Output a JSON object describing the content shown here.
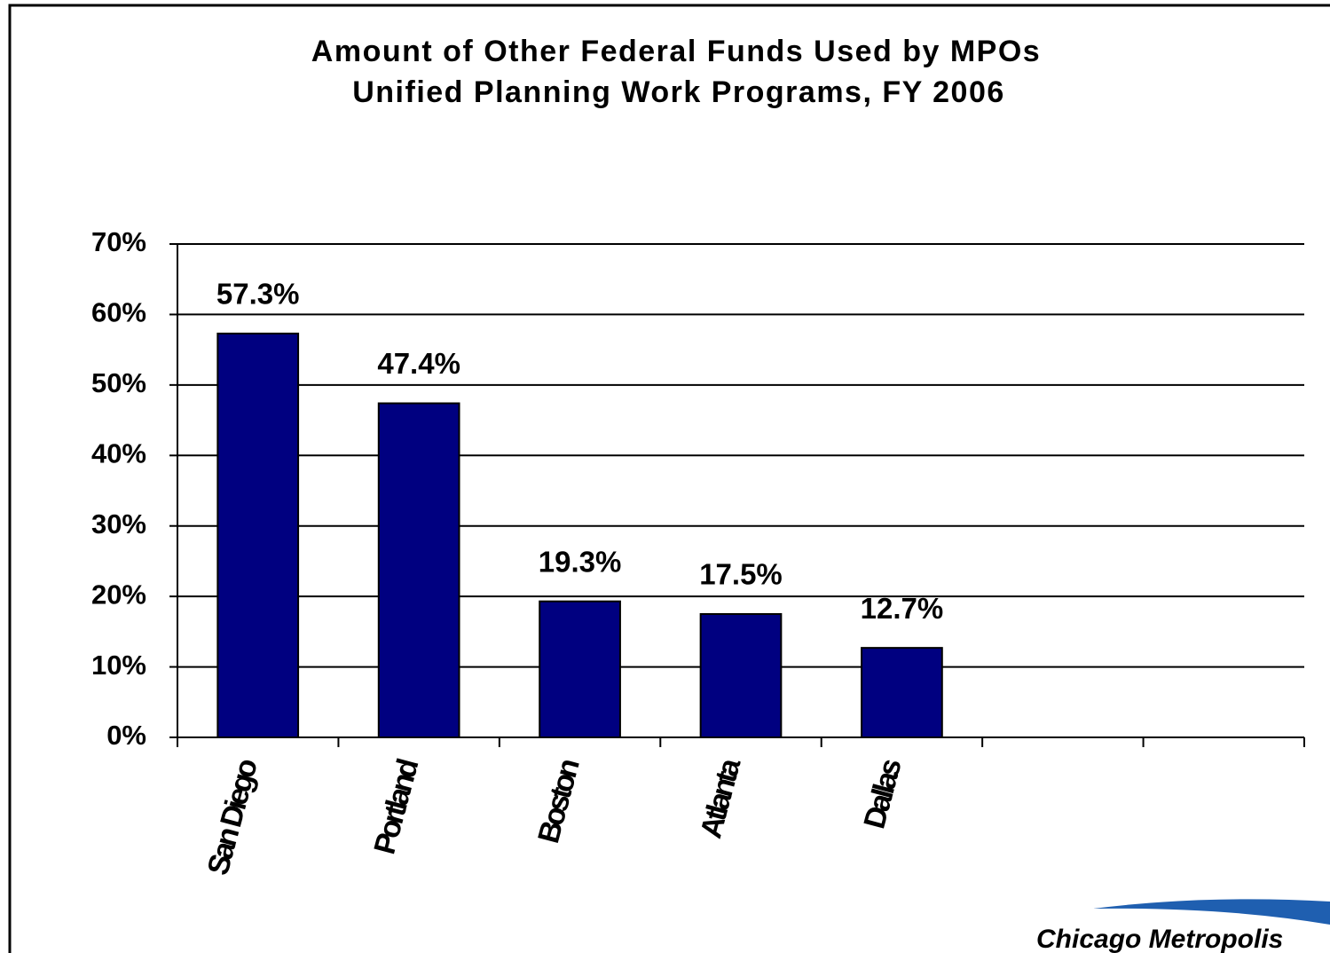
{
  "chart_data": {
    "type": "bar",
    "title": [
      "Amount of Other Federal Funds Used by MPOs",
      "Unified Planning Work Programs, FY 2006"
    ],
    "categories": [
      "San Diego",
      "Portland",
      "Boston",
      "Atlanta",
      "Dallas",
      null,
      null
    ],
    "values": [
      57.3,
      47.4,
      19.3,
      17.5,
      12.7,
      null,
      null
    ],
    "value_labels": [
      "57.3%",
      "47.4%",
      "19.3%",
      "17.5%",
      "12.7%",
      null,
      null
    ],
    "color": "#000080",
    "ylim": [
      0,
      70
    ],
    "yticks": [
      {
        "value": 0,
        "label": "0%"
      },
      {
        "value": 10,
        "label": "10%"
      },
      {
        "value": 20,
        "label": "20%"
      },
      {
        "value": 30,
        "label": "30%"
      },
      {
        "value": 40,
        "label": "40%"
      },
      {
        "value": 50,
        "label": "50%"
      },
      {
        "value": 60,
        "label": "60%"
      },
      {
        "value": 70,
        "label": "70%"
      }
    ],
    "grid": true
  },
  "logo": "Chicago Metropolis"
}
